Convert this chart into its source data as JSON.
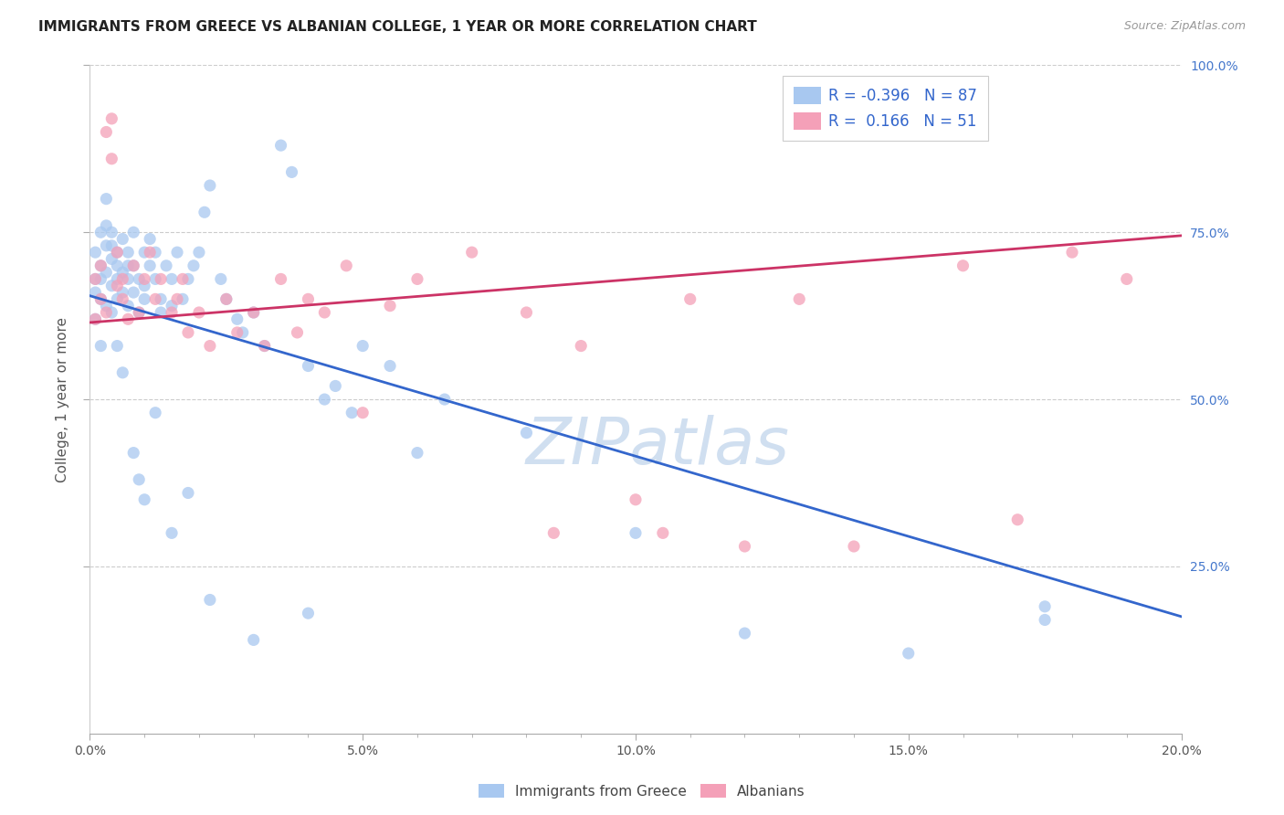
{
  "title": "IMMIGRANTS FROM GREECE VS ALBANIAN COLLEGE, 1 YEAR OR MORE CORRELATION CHART",
  "source": "Source: ZipAtlas.com",
  "ylabel": "College, 1 year or more",
  "xmin": 0.0,
  "xmax": 0.2,
  "ymin": 0.0,
  "ymax": 1.0,
  "xtick_labels": [
    "0.0%",
    "",
    "",
    "",
    "",
    "5.0%",
    "",
    "",
    "",
    "",
    "10.0%",
    "",
    "",
    "",
    "",
    "15.0%",
    "",
    "",
    "",
    "",
    "20.0%"
  ],
  "xtick_values": [
    0.0,
    0.01,
    0.02,
    0.03,
    0.04,
    0.05,
    0.06,
    0.07,
    0.08,
    0.09,
    0.1,
    0.11,
    0.12,
    0.13,
    0.14,
    0.15,
    0.16,
    0.17,
    0.18,
    0.19,
    0.2
  ],
  "xtick_major_labels": [
    "0.0%",
    "5.0%",
    "10.0%",
    "15.0%",
    "20.0%"
  ],
  "xtick_major_values": [
    0.0,
    0.05,
    0.1,
    0.15,
    0.2
  ],
  "ytick_labels": [
    "25.0%",
    "50.0%",
    "75.0%",
    "100.0%"
  ],
  "ytick_values": [
    0.25,
    0.5,
    0.75,
    1.0
  ],
  "legend_label1": "Immigrants from Greece",
  "legend_label2": "Albanians",
  "R1": -0.396,
  "N1": 87,
  "R2": 0.166,
  "N2": 51,
  "color_blue": "#A8C8F0",
  "color_pink": "#F4A0B8",
  "line_color_blue": "#3366CC",
  "line_color_pink": "#CC3366",
  "watermark": "ZIPatlas",
  "blue_trend_x": [
    0.0,
    0.2
  ],
  "blue_trend_y": [
    0.655,
    0.175
  ],
  "pink_trend_x": [
    0.0,
    0.2
  ],
  "pink_trend_y": [
    0.615,
    0.745
  ],
  "blue_points_x": [
    0.001,
    0.001,
    0.001,
    0.002,
    0.002,
    0.002,
    0.002,
    0.003,
    0.003,
    0.003,
    0.003,
    0.004,
    0.004,
    0.004,
    0.004,
    0.005,
    0.005,
    0.005,
    0.005,
    0.006,
    0.006,
    0.006,
    0.007,
    0.007,
    0.007,
    0.008,
    0.008,
    0.008,
    0.009,
    0.009,
    0.01,
    0.01,
    0.01,
    0.011,
    0.011,
    0.012,
    0.012,
    0.013,
    0.013,
    0.014,
    0.015,
    0.015,
    0.016,
    0.017,
    0.018,
    0.019,
    0.02,
    0.021,
    0.022,
    0.024,
    0.025,
    0.027,
    0.028,
    0.03,
    0.032,
    0.035,
    0.037,
    0.04,
    0.043,
    0.045,
    0.048,
    0.05,
    0.001,
    0.002,
    0.003,
    0.004,
    0.005,
    0.006,
    0.007,
    0.008,
    0.009,
    0.01,
    0.012,
    0.015,
    0.018,
    0.022,
    0.03,
    0.04,
    0.06,
    0.08,
    0.1,
    0.12,
    0.15,
    0.175,
    0.175,
    0.055,
    0.065
  ],
  "blue_points_y": [
    0.68,
    0.72,
    0.66,
    0.75,
    0.7,
    0.65,
    0.68,
    0.8,
    0.73,
    0.69,
    0.64,
    0.71,
    0.67,
    0.75,
    0.63,
    0.72,
    0.68,
    0.65,
    0.7,
    0.69,
    0.74,
    0.66,
    0.72,
    0.68,
    0.64,
    0.75,
    0.7,
    0.66,
    0.68,
    0.63,
    0.72,
    0.67,
    0.65,
    0.7,
    0.74,
    0.68,
    0.72,
    0.65,
    0.63,
    0.7,
    0.68,
    0.64,
    0.72,
    0.65,
    0.68,
    0.7,
    0.72,
    0.78,
    0.82,
    0.68,
    0.65,
    0.62,
    0.6,
    0.63,
    0.58,
    0.88,
    0.84,
    0.55,
    0.5,
    0.52,
    0.48,
    0.58,
    0.62,
    0.58,
    0.76,
    0.73,
    0.58,
    0.54,
    0.7,
    0.42,
    0.38,
    0.35,
    0.48,
    0.3,
    0.36,
    0.2,
    0.14,
    0.18,
    0.42,
    0.45,
    0.3,
    0.15,
    0.12,
    0.19,
    0.17,
    0.55,
    0.5
  ],
  "pink_points_x": [
    0.001,
    0.001,
    0.002,
    0.002,
    0.003,
    0.003,
    0.004,
    0.004,
    0.005,
    0.005,
    0.006,
    0.006,
    0.007,
    0.008,
    0.009,
    0.01,
    0.011,
    0.012,
    0.013,
    0.015,
    0.016,
    0.017,
    0.018,
    0.02,
    0.022,
    0.025,
    0.027,
    0.03,
    0.032,
    0.035,
    0.038,
    0.04,
    0.043,
    0.047,
    0.05,
    0.055,
    0.06,
    0.07,
    0.08,
    0.085,
    0.09,
    0.1,
    0.105,
    0.11,
    0.12,
    0.13,
    0.14,
    0.16,
    0.17,
    0.18,
    0.19
  ],
  "pink_points_y": [
    0.68,
    0.62,
    0.65,
    0.7,
    0.9,
    0.63,
    0.92,
    0.86,
    0.67,
    0.72,
    0.65,
    0.68,
    0.62,
    0.7,
    0.63,
    0.68,
    0.72,
    0.65,
    0.68,
    0.63,
    0.65,
    0.68,
    0.6,
    0.63,
    0.58,
    0.65,
    0.6,
    0.63,
    0.58,
    0.68,
    0.6,
    0.65,
    0.63,
    0.7,
    0.48,
    0.64,
    0.68,
    0.72,
    0.63,
    0.3,
    0.58,
    0.35,
    0.3,
    0.65,
    0.28,
    0.65,
    0.28,
    0.7,
    0.32,
    0.72,
    0.68
  ]
}
